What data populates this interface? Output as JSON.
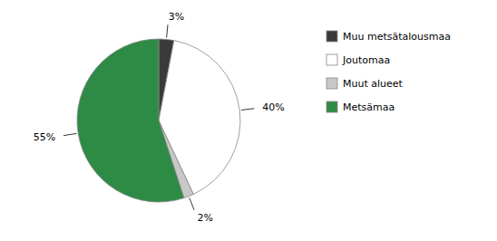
{
  "chart_data": {
    "type": "pie",
    "categories": [
      "Muu metsätalousmaa",
      "Joutomaa",
      "Muut alueet",
      "Metsämaa"
    ],
    "values": [
      3,
      40,
      2,
      55
    ],
    "value_labels": [
      "3%",
      "40%",
      "2%",
      "55%"
    ],
    "colors": [
      "#3a3a3a",
      "#ffffff",
      "#c8c8c8",
      "#2e8b45"
    ],
    "data_labels": true,
    "legend": "right"
  }
}
